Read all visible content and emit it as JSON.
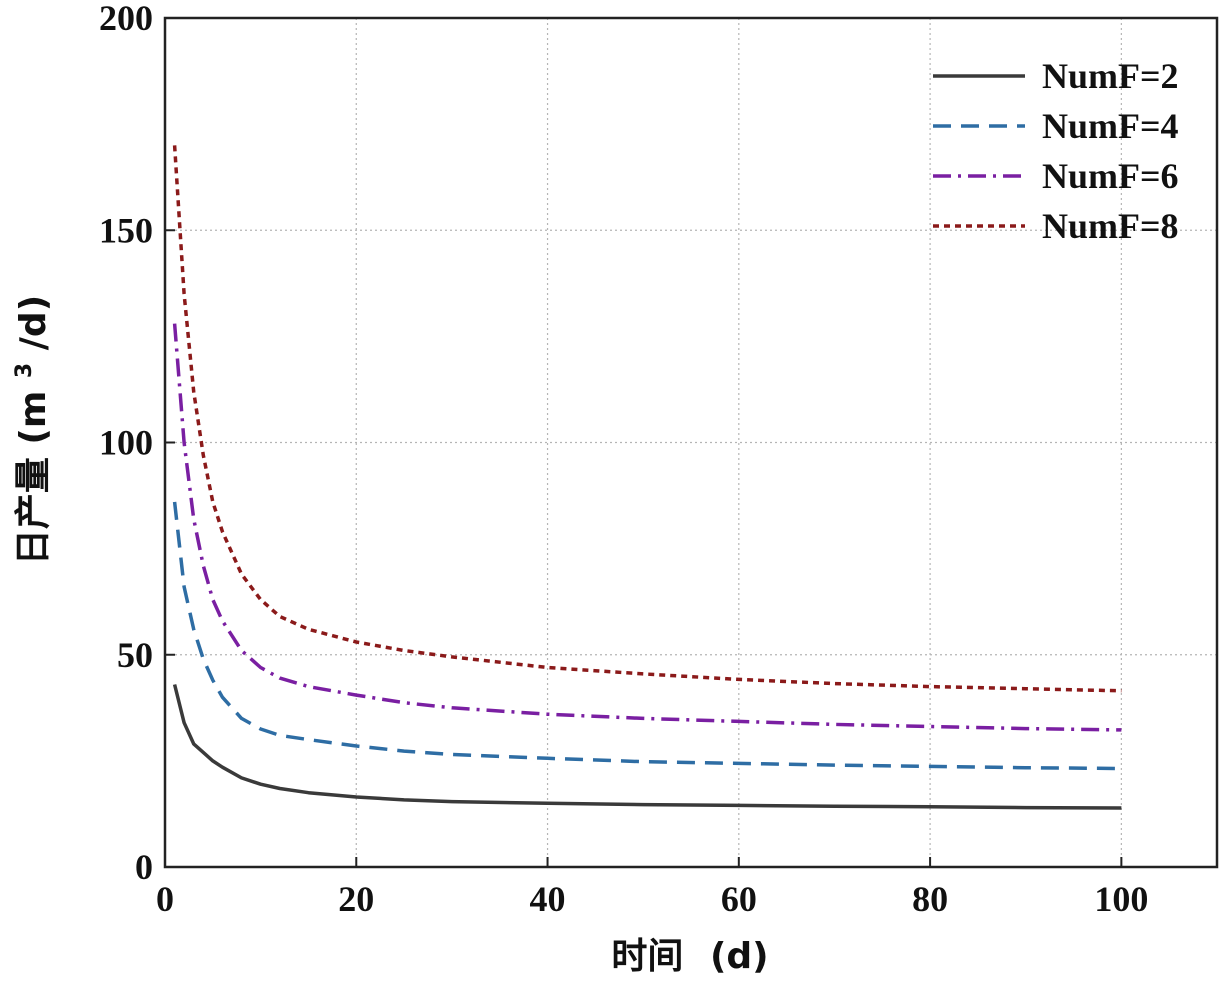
{
  "chart_data": {
    "type": "line",
    "title": "",
    "xlabel_cn": "时间",
    "xlabel_unit": "(d)",
    "ylabel_cn": "日产量",
    "ylabel_unit_open": "(m",
    "ylabel_unit_sup": "3",
    "ylabel_unit_close": "/d)",
    "xlim": [
      0,
      110
    ],
    "ylim": [
      0,
      200
    ],
    "xticks": [
      0,
      20,
      40,
      60,
      80,
      100
    ],
    "yticks": [
      0,
      50,
      100,
      150,
      200
    ],
    "grid": true,
    "legend_position": "top-right",
    "x": [
      1,
      2,
      3,
      4,
      5,
      6,
      8,
      10,
      12,
      15,
      20,
      25,
      30,
      40,
      50,
      60,
      70,
      80,
      90,
      100
    ],
    "series": [
      {
        "name": "NumF=2",
        "color": "#3a3a3a",
        "style": "solid",
        "values": [
          43,
          34,
          29,
          27,
          25,
          23.5,
          21,
          19.5,
          18.5,
          17.5,
          16.5,
          15.8,
          15.4,
          15.0,
          14.7,
          14.5,
          14.3,
          14.2,
          14.0,
          13.9
        ]
      },
      {
        "name": "NumF=4",
        "color": "#2e6da4",
        "style": "dashed",
        "values": [
          86,
          66,
          56,
          49,
          44,
          40,
          35,
          32.5,
          31,
          30,
          28.5,
          27.3,
          26.5,
          25.6,
          24.8,
          24.4,
          24.0,
          23.7,
          23.4,
          23.2
        ]
      },
      {
        "name": "NumF=6",
        "color": "#7a1fa2",
        "style": "dashdot",
        "values": [
          128,
          100,
          82,
          71,
          63,
          58,
          51,
          47,
          44.5,
          42.5,
          40.5,
          38.7,
          37.5,
          36,
          35,
          34.3,
          33.6,
          33.1,
          32.6,
          32.3
        ]
      },
      {
        "name": "NumF=8",
        "color": "#8b1a1a",
        "style": "dotted",
        "values": [
          170,
          135,
          112,
          97,
          86,
          79,
          69,
          63,
          59,
          56,
          53,
          51,
          49.5,
          47,
          45.5,
          44.2,
          43.2,
          42.5,
          42,
          41.5
        ]
      }
    ]
  }
}
